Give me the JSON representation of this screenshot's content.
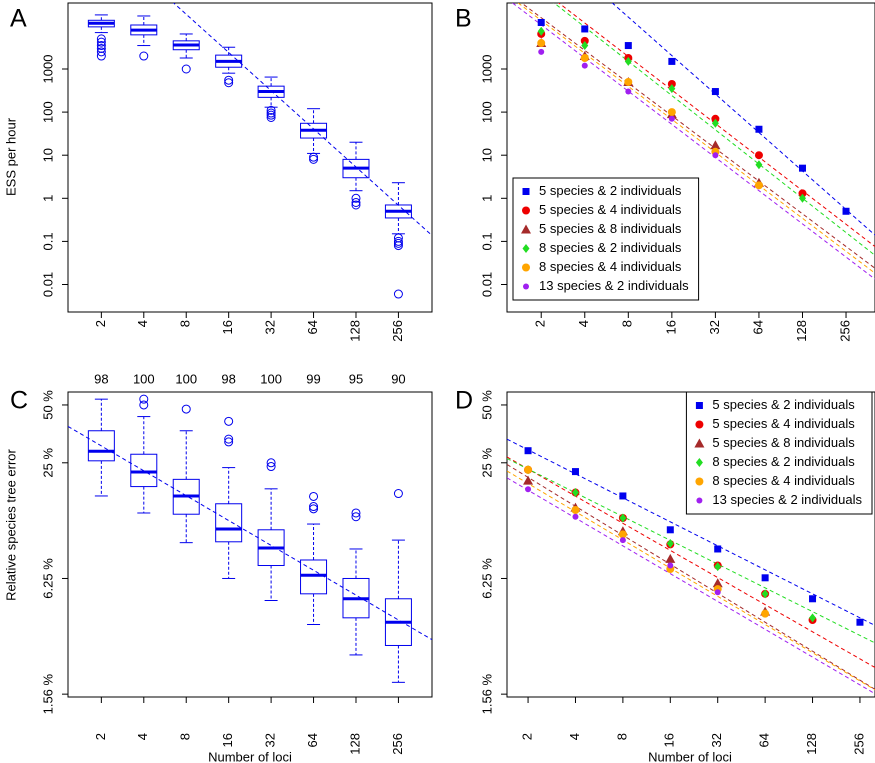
{
  "chart_data": [
    {
      "type": "box",
      "panel_label": "A",
      "y_label": "ESS per hour",
      "color": "#0000ee",
      "xscale": "log2",
      "yscale": "log",
      "xlim": [
        1.16,
        443
      ],
      "ylim": [
        0.0023,
        34000
      ],
      "xticks": [
        2,
        4,
        8,
        16,
        32,
        64,
        128,
        256
      ],
      "yticks": [
        0.01,
        0.1,
        1,
        10,
        100,
        1000
      ],
      "x": [
        2,
        4,
        8,
        16,
        32,
        64,
        128,
        256
      ],
      "boxes": [
        {
          "min": 7000,
          "q1": 9500,
          "median": 11500,
          "q3": 13500,
          "max": 18000,
          "outliers": [
            5000,
            4200,
            3500,
            3000,
            2500,
            2000
          ]
        },
        {
          "min": 3500,
          "q1": 6200,
          "median": 8000,
          "q3": 10500,
          "max": 17000,
          "outliers": [
            2000
          ]
        },
        {
          "min": 1800,
          "q1": 2800,
          "median": 3600,
          "q3": 4500,
          "max": 6500,
          "outliers": [
            1000
          ]
        },
        {
          "min": 800,
          "q1": 1100,
          "median": 1500,
          "q3": 2100,
          "max": 3200,
          "outliers": [
            550,
            480
          ]
        },
        {
          "min": 130,
          "q1": 220,
          "median": 300,
          "q3": 400,
          "max": 650,
          "outliers": [
            110,
            95,
            85,
            75
          ]
        },
        {
          "min": 11,
          "q1": 25,
          "median": 38,
          "q3": 55,
          "max": 120,
          "outliers": [
            9,
            8
          ]
        },
        {
          "min": 1.5,
          "q1": 3,
          "median": 5,
          "q3": 8,
          "max": 20,
          "outliers": [
            1,
            0.8,
            0.7
          ]
        },
        {
          "min": 0.15,
          "q1": 0.35,
          "median": 0.5,
          "q3": 0.7,
          "max": 2.3,
          "outliers": [
            0.12,
            0.1,
            0.09,
            0.08,
            0.006
          ]
        }
      ],
      "trend": {
        "x": [
          8,
          256
        ],
        "y": [
          18600,
          0.69
        ]
      }
    },
    {
      "type": "scatter",
      "panel_label": "B",
      "xscale": "log2",
      "yscale": "log",
      "legend": "bottom-left",
      "xlim": [
        1.16,
        406
      ],
      "ylim": [
        0.0023,
        34000
      ],
      "xticks": [
        2,
        4,
        8,
        16,
        32,
        64,
        128,
        256
      ],
      "yticks": [
        0.01,
        0.1,
        1,
        10,
        100,
        1000
      ],
      "x": [
        2,
        4,
        8,
        16,
        32,
        64,
        128,
        256
      ],
      "series": [
        {
          "name": "5 species & 2 individuals",
          "color": "#0000ee",
          "marker": "square",
          "values": [
            12000,
            8500,
            3500,
            1500,
            300,
            40,
            5,
            0.5
          ],
          "trend": {
            "x": [
              16,
              256
            ],
            "y": [
              2050,
              0.55
            ]
          }
        },
        {
          "name": "5 species & 4 individuals",
          "color": "#ee0000",
          "marker": "circle",
          "values": [
            6500,
            4500,
            1800,
            450,
            70,
            10,
            1.3,
            null
          ],
          "trend": {
            "x": [
              4,
              128
            ],
            "y": [
              11700,
              1.5
            ]
          }
        },
        {
          "name": "5 species & 8 individuals",
          "color": "#a52a2a",
          "marker": "triangle",
          "values": [
            4000,
            2000,
            500,
            90,
            17,
            2.3,
            null,
            null
          ],
          "trend": {
            "x": [
              4,
              64
            ],
            "y": [
              2700,
              2.5
            ]
          }
        },
        {
          "name": "8 species & 2 individuals",
          "color": "#22dd22",
          "marker": "diamond",
          "values": [
            7500,
            3500,
            1500,
            350,
            55,
            6,
            1.0,
            null
          ],
          "trend": {
            "x": [
              4,
              128
            ],
            "y": [
              9400,
              1.0
            ]
          }
        },
        {
          "name": "8 species & 4 individuals",
          "color": "#ffa500",
          "marker": "circle",
          "values": [
            4000,
            1800,
            500,
            100,
            12,
            2,
            null,
            null
          ],
          "trend": {
            "x": [
              4,
              64
            ],
            "y": [
              2300,
              2.0
            ]
          }
        },
        {
          "name": "13 species & 2 individuals",
          "color": "#a020f0",
          "marker": "small-circle",
          "values": [
            2500,
            1200,
            300,
            70,
            10,
            null,
            null,
            null
          ],
          "trend": {
            "x": [
              4,
              64
            ],
            "y": [
              1800,
              1.5
            ]
          }
        }
      ]
    },
    {
      "type": "box",
      "panel_label": "C",
      "y_label": "Relative species tree error",
      "x_label": "Number of loci",
      "color": "#0000ee",
      "xscale": "log2",
      "yscale": "log",
      "xlim": [
        1.16,
        443
      ],
      "ylim": [
        1.51,
        58.4
      ],
      "xticks": [
        2,
        4,
        8,
        16,
        32,
        64,
        128,
        256
      ],
      "yticks": [
        {
          "value": 1.5625,
          "label": "1.56 %"
        },
        {
          "value": 6.25,
          "label": "6.25 %"
        },
        {
          "value": 25,
          "label": "25 %"
        },
        {
          "value": 50,
          "label": "50 %"
        }
      ],
      "x": [
        2,
        4,
        8,
        16,
        32,
        64,
        128,
        256
      ],
      "top_values": [
        98,
        100,
        100,
        98,
        100,
        99,
        95,
        90
      ],
      "boxes": [
        {
          "min": 16.8,
          "q1": 25.6,
          "median": 28.7,
          "q3": 36.7,
          "max": 53.6,
          "outliers": []
        },
        {
          "min": 13.7,
          "q1": 18.8,
          "median": 22.4,
          "q3": 27.7,
          "max": 43.5,
          "outliers": [
            53.6,
            50
          ]
        },
        {
          "min": 9.6,
          "q1": 13.5,
          "median": 16.8,
          "q3": 20.5,
          "max": 36.7,
          "outliers": [
            47.6
          ]
        },
        {
          "min": 6.25,
          "q1": 9.7,
          "median": 11.3,
          "q3": 15.3,
          "max": 23.6,
          "outliers": [
            41.1,
            33.2,
            32.1
          ]
        },
        {
          "min": 4.8,
          "q1": 7.3,
          "median": 9.0,
          "q3": 11.2,
          "max": 18.3,
          "outliers": [
            25,
            23.9
          ]
        },
        {
          "min": 3.6,
          "q1": 5.2,
          "median": 6.5,
          "q3": 7.8,
          "max": 12.0,
          "outliers": [
            16.7,
            14.8,
            14.4
          ]
        },
        {
          "min": 2.5,
          "q1": 3.9,
          "median": 4.9,
          "q3": 6.25,
          "max": 8.9,
          "outliers": [
            13.7,
            13.1
          ]
        },
        {
          "min": 1.8,
          "q1": 2.8,
          "median": 3.7,
          "q3": 4.9,
          "max": 9.9,
          "outliers": [
            17.3
          ]
        }
      ],
      "trend": {
        "x": [
          2,
          256
        ],
        "y": [
          30.6,
          3.8
        ]
      }
    },
    {
      "type": "scatter",
      "panel_label": "D",
      "x_label": "Number of loci",
      "xscale": "log2",
      "yscale": "log",
      "legend": "top-right",
      "xlim": [
        1.47,
        319
      ],
      "ylim": [
        1.51,
        58.4
      ],
      "xticks": [
        2,
        4,
        8,
        16,
        32,
        64,
        128,
        256
      ],
      "yticks": [
        {
          "value": 1.5625,
          "label": "1.56 %"
        },
        {
          "value": 6.25,
          "label": "6.25 %"
        },
        {
          "value": 25,
          "label": "25 %"
        },
        {
          "value": 50,
          "label": "50 %"
        }
      ],
      "x": [
        2,
        4,
        8,
        16,
        32,
        64,
        128,
        256
      ],
      "series": [
        {
          "name": "5 species & 2 individuals",
          "color": "#0000ee",
          "marker": "square",
          "values": [
            28.9,
            22.5,
            16.8,
            11.2,
            8.9,
            6.3,
            4.9,
            3.7
          ],
          "trend": {
            "x": [
              2,
              256
            ],
            "y": [
              29.2,
              3.9
            ]
          }
        },
        {
          "name": "5 species & 4 individuals",
          "color": "#ee0000",
          "marker": "circle",
          "values": [
            23.0,
            17.5,
            12.9,
            9.4,
            7.3,
            5.2,
            3.8,
            null
          ],
          "trend": {
            "x": [
              2,
              128
            ],
            "y": [
              23.2,
              3.3
            ]
          }
        },
        {
          "name": "5 species & 8 individuals",
          "color": "#a52a2a",
          "marker": "triangle",
          "values": [
            20.2,
            14.6,
            11.0,
            7.9,
            5.9,
            4.2,
            null,
            null
          ],
          "trend": {
            "x": [
              2,
              64
            ],
            "y": [
              21,
              3.7
            ]
          }
        },
        {
          "name": "8 species & 2 individuals",
          "color": "#22dd22",
          "marker": "diamond",
          "values": [
            23.0,
            17.5,
            12.9,
            9.5,
            7.2,
            5.2,
            3.9,
            null
          ],
          "trend": {
            "x": [
              2,
              128
            ],
            "y": [
              23.2,
              4.2
            ]
          }
        },
        {
          "name": "8 species & 4 individuals",
          "color": "#ffa500",
          "marker": "circle",
          "values": [
            23.0,
            14.2,
            10.6,
            7.0,
            5.5,
            4.1,
            null,
            null
          ],
          "trend": {
            "x": [
              2,
              64
            ],
            "y": [
              19.5,
              3.6
            ]
          }
        },
        {
          "name": "13 species & 2 individuals",
          "color": "#a020f0",
          "marker": "small-circle",
          "values": [
            18.2,
            13.1,
            9.9,
            7.3,
            5.3,
            null,
            null,
            null
          ],
          "trend": {
            "x": [
              2,
              64
            ],
            "y": [
              18,
              3.4
            ]
          }
        }
      ]
    }
  ]
}
